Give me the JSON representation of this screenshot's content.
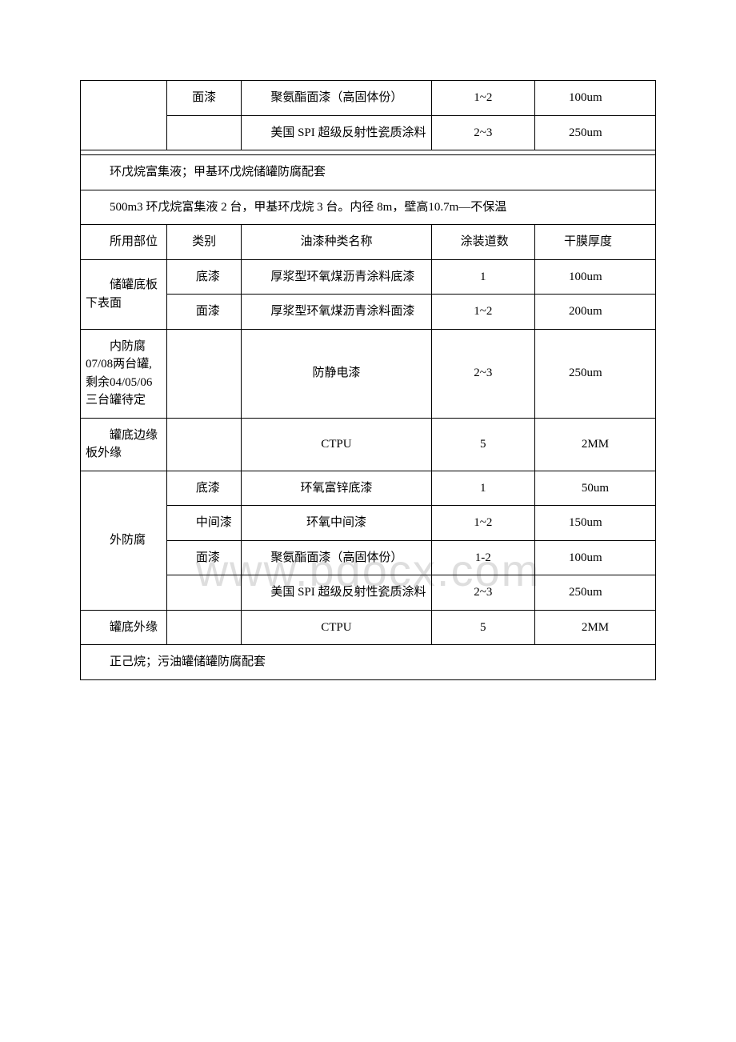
{
  "watermark": "www.bdocx.com",
  "top_rows": [
    {
      "part": "",
      "type": "面漆",
      "name": "聚氨酯面漆（高固体份）",
      "coats": "1~2",
      "thickness": "100um"
    },
    {
      "part": "",
      "type": "",
      "name": "美国 SPI 超级反射性瓷质涂料",
      "coats": "2~3",
      "thickness": "250um"
    }
  ],
  "section1_title": "环戊烷富集液；甲基环戊烷储罐防腐配套",
  "section1_subtitle": "500m3 环戊烷富集液 2 台，甲基环戊烷 3 台。内径 8m，壁高10.7m—不保温",
  "header": {
    "part": "所用部位",
    "type": "类别",
    "name": "油漆种类名称",
    "coats": "涂装道数",
    "thickness": "干膜厚度"
  },
  "rows": [
    {
      "part": "储罐底板下表面",
      "part_rowspan": 2,
      "type": "底漆",
      "name": "厚浆型环氧煤沥青涂料底漆",
      "coats": "1",
      "thickness": "100um"
    },
    {
      "part": "",
      "part_rowspan": 0,
      "type": "面漆",
      "name": "厚浆型环氧煤沥青涂料面漆",
      "coats": "1~2",
      "thickness": "200um"
    },
    {
      "part": "内防腐 07/08两台罐,剩余04/05/06三台罐待定",
      "part_rowspan": 1,
      "type": "",
      "name": "防静电漆",
      "coats": "2~3",
      "thickness": "250um"
    },
    {
      "part": "罐底边缘板外缘",
      "part_rowspan": 1,
      "type": "",
      "name": "CTPU",
      "coats": "5",
      "thickness": "2MM"
    },
    {
      "part": "外防腐",
      "part_rowspan": 4,
      "type": "底漆",
      "name": "环氧富锌底漆",
      "coats": "1",
      "thickness": "50um"
    },
    {
      "part": "",
      "part_rowspan": 0,
      "type": "中间漆",
      "name": "环氧中间漆",
      "coats": "1~2",
      "thickness": "150um"
    },
    {
      "part": "",
      "part_rowspan": 0,
      "type": "面漆",
      "name": "聚氨酯面漆（高固体份）",
      "coats": "1-2",
      "thickness": "100um"
    },
    {
      "part": "",
      "part_rowspan": 0,
      "type": "",
      "name": "美国 SPI 超级反射性瓷质涂料",
      "coats": "2~3",
      "thickness": "250um"
    },
    {
      "part": "罐底外缘",
      "part_rowspan": 1,
      "type": "",
      "name": "CTPU",
      "coats": "5",
      "thickness": "2MM"
    }
  ],
  "section2_title": "正己烷；污油罐储罐防腐配套"
}
